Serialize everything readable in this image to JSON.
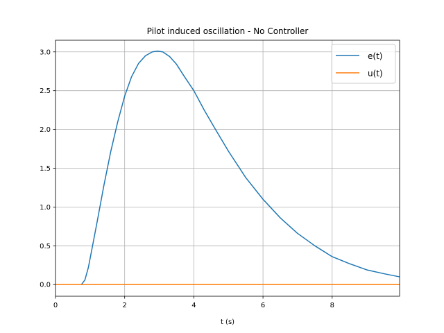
{
  "chart_data": {
    "type": "line",
    "title": "Pilot induced oscillation - No Controller",
    "xlabel": "t (s)",
    "ylabel": "",
    "xlim": [
      0,
      9.95
    ],
    "ylim": [
      -0.15,
      3.15
    ],
    "xticks": [
      0,
      2,
      4,
      6,
      8
    ],
    "yticks": [
      0.0,
      0.5,
      1.0,
      1.5,
      2.0,
      2.5,
      3.0
    ],
    "xtick_labels": [
      "0",
      "2",
      "4",
      "6",
      "8"
    ],
    "ytick_labels": [
      "0.0",
      "0.5",
      "1.0",
      "1.5",
      "2.0",
      "2.5",
      "3.0"
    ],
    "grid": true,
    "legend_position": "top-right",
    "series": [
      {
        "name": "e(t)",
        "color": "#1f77b4",
        "x": [
          0,
          0.5,
          0.75,
          0.85,
          0.95,
          1.05,
          1.2,
          1.4,
          1.6,
          1.8,
          2.0,
          2.2,
          2.4,
          2.6,
          2.8,
          2.95,
          3.1,
          3.3,
          3.5,
          3.7,
          4.0,
          4.3,
          4.6,
          5.0,
          5.5,
          6.0,
          6.5,
          7.0,
          7.5,
          8.0,
          8.5,
          9.0,
          9.5,
          9.95
        ],
        "y": [
          0,
          0,
          0,
          0.06,
          0.22,
          0.45,
          0.8,
          1.28,
          1.72,
          2.1,
          2.43,
          2.68,
          2.85,
          2.95,
          3.0,
          3.01,
          3.0,
          2.94,
          2.84,
          2.7,
          2.5,
          2.25,
          2.02,
          1.72,
          1.38,
          1.1,
          0.86,
          0.66,
          0.5,
          0.36,
          0.27,
          0.19,
          0.14,
          0.1
        ]
      },
      {
        "name": "u(t)",
        "color": "#ff7f0e",
        "x": [
          0,
          9.95
        ],
        "y": [
          0,
          0
        ]
      }
    ]
  }
}
